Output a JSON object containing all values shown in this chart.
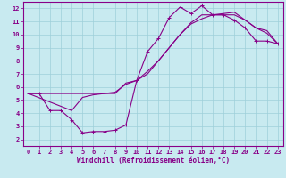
{
  "background_color": "#c8eaf0",
  "line_color": "#880088",
  "marker": "+",
  "markersize": 3,
  "linewidth": 0.8,
  "xlabel": "Windchill (Refroidissement éolien,°C)",
  "xlabel_fontsize": 5.5,
  "tick_fontsize": 5,
  "xlim": [
    -0.5,
    23.5
  ],
  "ylim": [
    1.5,
    12.5
  ],
  "xticks": [
    0,
    1,
    2,
    3,
    4,
    5,
    6,
    7,
    8,
    9,
    10,
    11,
    12,
    13,
    14,
    15,
    16,
    17,
    18,
    19,
    20,
    21,
    22,
    23
  ],
  "yticks": [
    2,
    3,
    4,
    5,
    6,
    7,
    8,
    9,
    10,
    11,
    12
  ],
  "grid_color": "#9ecfda",
  "line1_x": [
    0,
    1,
    2,
    3,
    4,
    5,
    6,
    7,
    8,
    9,
    10,
    11,
    12,
    13,
    14,
    15,
    16,
    17,
    18,
    19,
    20,
    21,
    22,
    23
  ],
  "line1_y": [
    5.5,
    5.5,
    4.2,
    4.2,
    3.5,
    2.5,
    2.6,
    2.6,
    2.7,
    3.1,
    6.5,
    8.7,
    9.7,
    11.3,
    12.1,
    11.6,
    12.2,
    11.5,
    11.5,
    11.1,
    10.5,
    9.5,
    9.5,
    9.3
  ],
  "line2_x": [
    0,
    1,
    2,
    3,
    4,
    5,
    6,
    7,
    8,
    9,
    10,
    11,
    12,
    13,
    14,
    15,
    16,
    17,
    18,
    19,
    20,
    21,
    22,
    23
  ],
  "line2_y": [
    5.5,
    5.5,
    5.5,
    5.5,
    5.5,
    5.5,
    5.5,
    5.5,
    5.5,
    6.3,
    6.5,
    7.2,
    8.0,
    9.0,
    10.0,
    10.8,
    11.2,
    11.5,
    11.6,
    11.7,
    11.1,
    10.5,
    10.1,
    9.3
  ],
  "line3_x": [
    0,
    4,
    5,
    6,
    7,
    8,
    9,
    10,
    11,
    12,
    13,
    14,
    15,
    16,
    17,
    18,
    19,
    20,
    21,
    22,
    23
  ],
  "line3_y": [
    5.5,
    4.2,
    5.2,
    5.4,
    5.5,
    5.6,
    6.2,
    6.5,
    7.0,
    8.0,
    9.0,
    10.0,
    10.9,
    11.5,
    11.5,
    11.5,
    11.5,
    11.1,
    10.5,
    10.3,
    9.3
  ]
}
